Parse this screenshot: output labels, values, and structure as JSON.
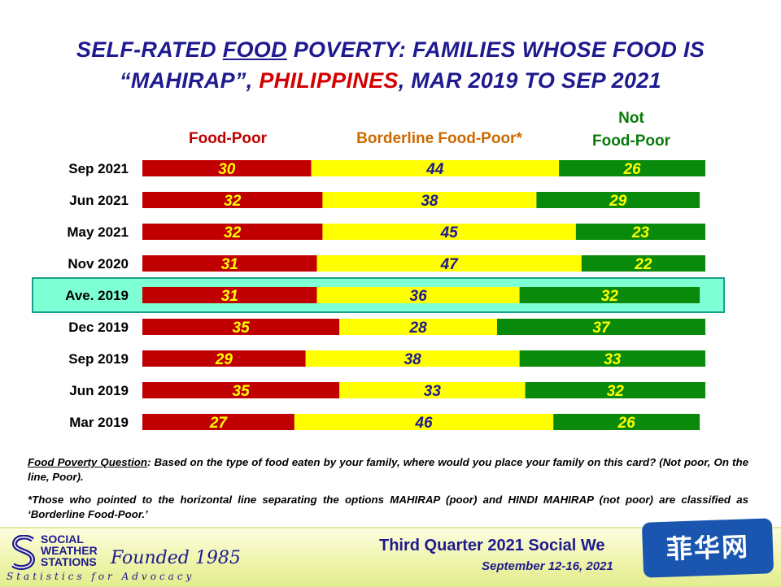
{
  "title": {
    "line1_a": "SELF-RATED ",
    "line1_u": "FOOD",
    "line1_b": " POVERTY: FAMILIES WHOSE FOOD IS",
    "line2_a": "“MAHIRAP”, ",
    "line2_red": "PHILIPPINES",
    "line2_b": ", MAR 2019 TO SEP 2021"
  },
  "headers": {
    "poor": "Food-Poor",
    "borderline": "Borderline Food-Poor*",
    "not_line1": "Not",
    "not_line2": "Food-Poor"
  },
  "chart_data": {
    "type": "bar",
    "orientation": "horizontal",
    "stacked": true,
    "categories": [
      "Sep 2021",
      "Jun 2021",
      "May 2021",
      "Nov 2020",
      "Ave. 2019",
      "Dec 2019",
      "Sep 2019",
      "Jun 2019",
      "Mar 2019"
    ],
    "series": [
      {
        "name": "Food-Poor",
        "values": [
          30,
          32,
          32,
          31,
          31,
          35,
          29,
          35,
          27
        ],
        "color": "#c00000"
      },
      {
        "name": "Borderline Food-Poor*",
        "values": [
          44,
          38,
          45,
          47,
          36,
          28,
          38,
          33,
          46
        ],
        "color": "#ffff00"
      },
      {
        "name": "Not Food-Poor",
        "values": [
          26,
          29,
          23,
          22,
          32,
          37,
          33,
          32,
          26
        ],
        "color": "#0a8a0a"
      }
    ],
    "highlighted_category": "Ave. 2019",
    "highlight_color": "#7fffd4",
    "label_colors": {
      "on_red": "#ffff00",
      "on_yellow": "#1f1a8f",
      "on_green": "#ffff00"
    }
  },
  "notes": {
    "q_label": "Food Poverty Question",
    "q_text": ":  Based on the type of food eaten by your family,  where would you place your family on this card?  (Not poor,  On the line,  Poor).",
    "footnote": "*Those who pointed to the horizontal line separating the options  MAHIRAP (poor) and HINDI MAHIRAP (not poor) are classified  as ‘Borderline  Food-Poor.’"
  },
  "footer": {
    "org_line1": "SOCIAL",
    "org_line2": "WEATHER",
    "org_line3": "STATIONS",
    "founded": "Founded 1985",
    "tagline": "Statistics for Advocacy",
    "survey": "Third Quarter 2021 Social We",
    "dates": "September 12-16, 2021"
  },
  "watermark": "菲华网"
}
